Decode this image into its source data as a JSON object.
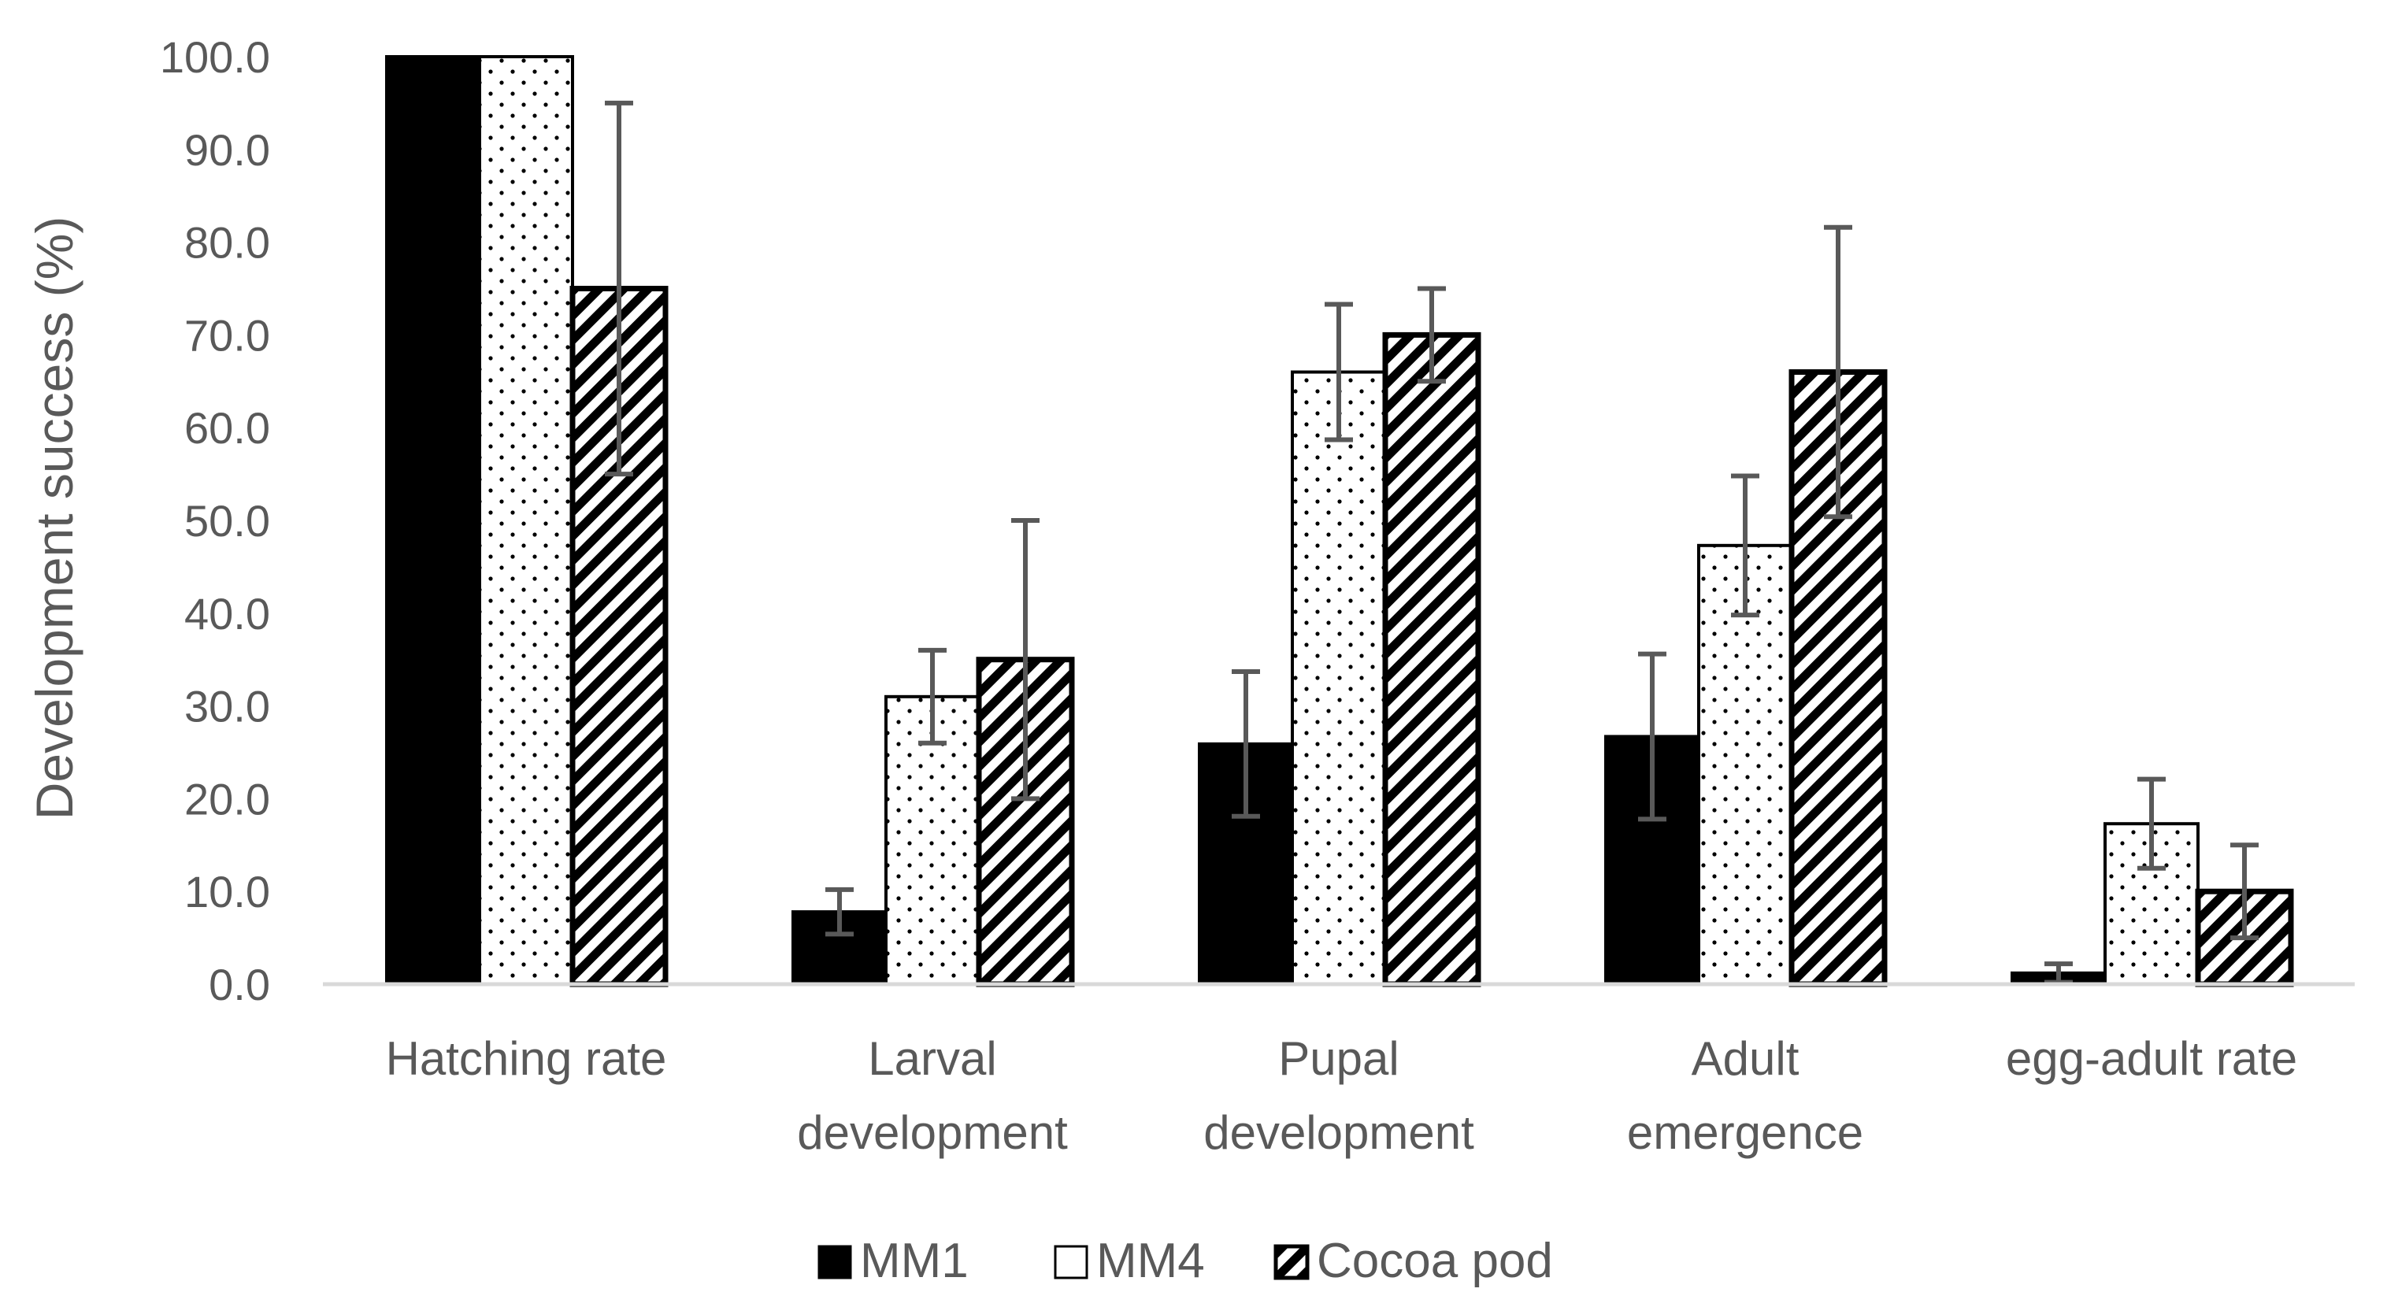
{
  "chart_data": {
    "type": "bar",
    "title": "",
    "xlabel": "",
    "ylabel": "Development success (%)",
    "ylim": [
      0,
      100
    ],
    "ytick_step": 10,
    "ytick_labels": [
      "0.0",
      "10.0",
      "20.0",
      "30.0",
      "40.0",
      "50.0",
      "60.0",
      "70.0",
      "80.0",
      "90.0",
      "100.0"
    ],
    "grid": false,
    "legend_position": "bottom-center",
    "categories": [
      [
        "Hatching rate"
      ],
      [
        "Larval",
        "development"
      ],
      [
        "Pupal",
        "development"
      ],
      [
        "Adult",
        "emergence"
      ],
      [
        "egg-adult rate"
      ]
    ],
    "series": [
      {
        "name": "MM1",
        "fill": "solid",
        "color": "#000000",
        "values": [
          100.0,
          7.8,
          25.9,
          26.7,
          1.2
        ],
        "errors": [
          0.0,
          2.4,
          7.8,
          8.9,
          1.0
        ]
      },
      {
        "name": "MM4",
        "fill": "dots",
        "color": "#000000",
        "values": [
          100.0,
          31.0,
          66.0,
          47.3,
          17.3
        ],
        "errors": [
          0.0,
          5.0,
          7.3,
          7.5,
          4.8
        ]
      },
      {
        "name": "Cocoa pod",
        "fill": "diagonal-stripes",
        "color": "#000000",
        "values": [
          75.0,
          35.0,
          70.0,
          66.0,
          10.0
        ],
        "errors": [
          20.0,
          15.0,
          5.0,
          15.6,
          5.0
        ]
      }
    ],
    "colors": {
      "axis": "#d9d9d9",
      "text": "#595959",
      "error_bar": "#595959",
      "bar_edge": "#000000"
    }
  }
}
